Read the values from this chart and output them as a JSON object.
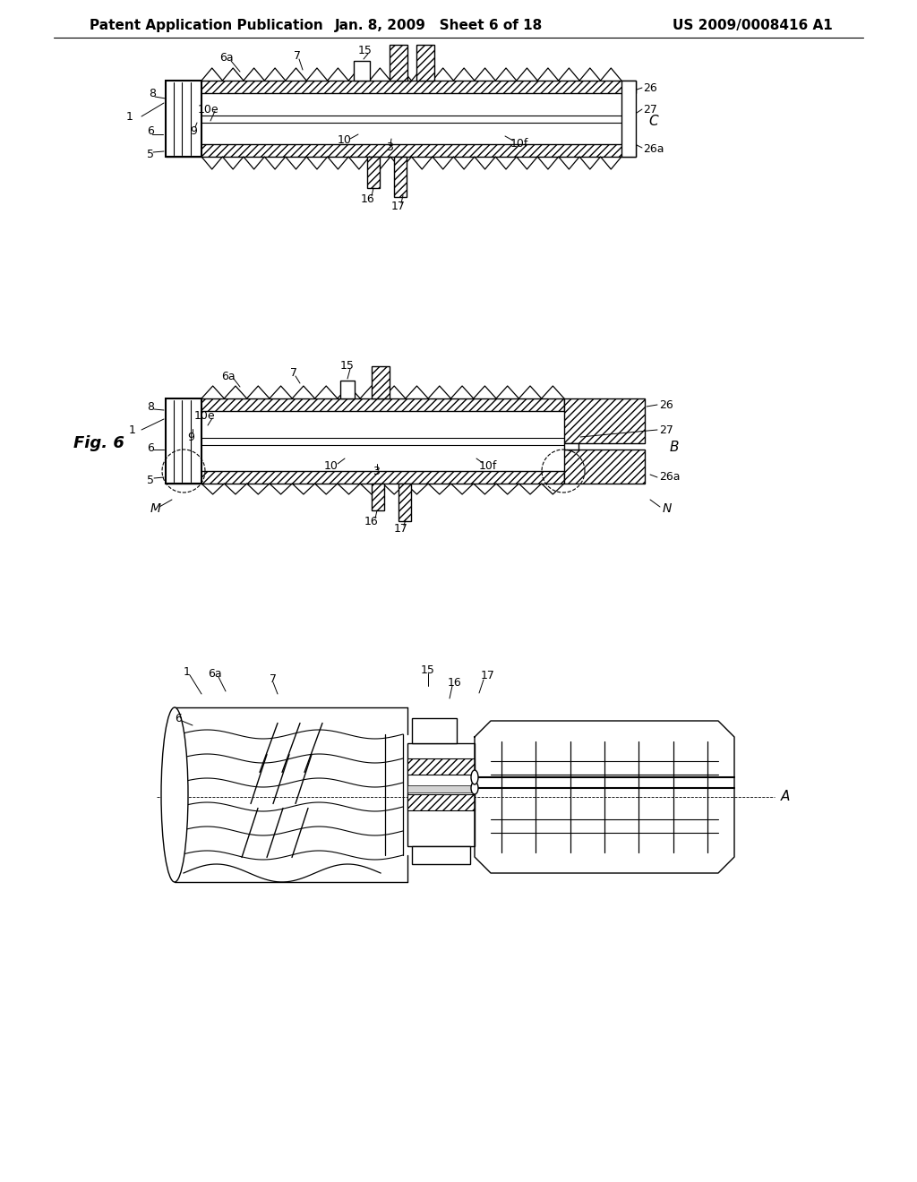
{
  "background_color": "#ffffff",
  "line_color": "#000000",
  "header_left": "Patent Application Publication",
  "header_center": "Jan. 8, 2009   Sheet 6 of 18",
  "header_right": "US 2009/0008416 A1",
  "fig_label": "Fig. 6",
  "header_fontsize": 11,
  "label_fontsize": 9,
  "fig_label_fontsize": 13
}
